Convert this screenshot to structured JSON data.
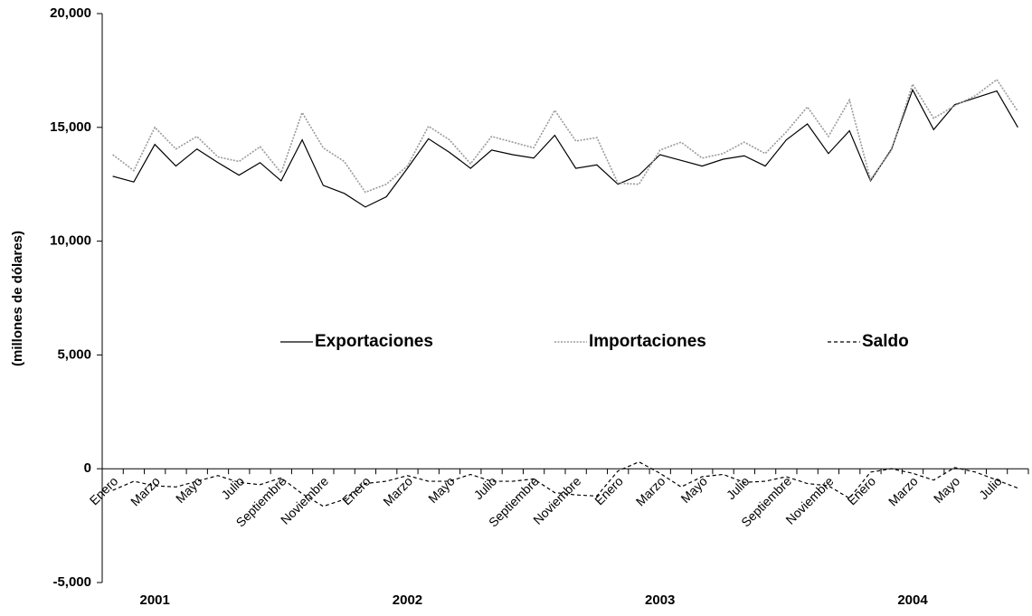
{
  "chart_data": {
    "type": "line",
    "y_label": "(millones de dólares)",
    "categories": [
      "Enero",
      null,
      "Marzo",
      null,
      "Mayo",
      null,
      "Julio",
      null,
      "Septiembre",
      null,
      "Noviembre",
      null,
      "Enero",
      null,
      "Marzo",
      null,
      "Mayo",
      null,
      "Julio",
      null,
      "Septiembre",
      null,
      "Noviembre",
      null,
      "Enero",
      null,
      "Marzo",
      null,
      "Mayo",
      null,
      "Julio",
      null,
      "Septiembre",
      null,
      "Noviembre",
      null,
      "Enero",
      null,
      "Marzo",
      null,
      "Mayo",
      null,
      "Julio",
      null
    ],
    "years": [
      "2001",
      "2002",
      "2003",
      "2004"
    ],
    "series": [
      {
        "name": "Exportaciones",
        "color": "#000000",
        "style": "solid",
        "values": [
          12850,
          12600,
          14250,
          13300,
          14050,
          13450,
          12900,
          13450,
          12650,
          14450,
          12450,
          12100,
          11500,
          11950,
          13200,
          14500,
          13900,
          13200,
          14000,
          13800,
          13650,
          14650,
          13200,
          13350,
          12500,
          12900,
          13800,
          13550,
          13300,
          13600,
          13750,
          13300,
          14450,
          15150,
          13850,
          14850,
          12650,
          14050,
          16650,
          14900,
          16000,
          16300,
          16600,
          15000
        ]
      },
      {
        "name": "Importaciones",
        "color": "#9a9a9a",
        "style": "dotted",
        "values": [
          13800,
          13100,
          15000,
          14050,
          14600,
          13700,
          13500,
          14150,
          13000,
          15650,
          14100,
          13500,
          12150,
          12500,
          13300,
          15050,
          14450,
          13400,
          14600,
          14350,
          14100,
          15750,
          14400,
          14550,
          12550,
          12500,
          14000,
          14350,
          13650,
          13850,
          14350,
          13850,
          14800,
          15900,
          14600,
          16200,
          12700,
          14000,
          16900,
          15400,
          15950,
          16400,
          17100,
          15700
        ]
      },
      {
        "name": "Saldo",
        "color": "#000000",
        "style": "dashed",
        "values": [
          -950,
          -550,
          -750,
          -800,
          -550,
          -300,
          -600,
          -700,
          -400,
          -1100,
          -1650,
          -1350,
          -650,
          -550,
          -300,
          -550,
          -550,
          -250,
          -550,
          -550,
          -450,
          -1050,
          -1150,
          -1200,
          -100,
          300,
          -200,
          -800,
          -350,
          -250,
          -600,
          -550,
          -350,
          -650,
          -750,
          -1300,
          -150,
          0,
          -200,
          -500,
          50,
          -150,
          -500,
          -850
        ]
      }
    ],
    "ylim": [
      -5000,
      20000
    ],
    "yticks": [
      {
        "value": -5000,
        "label": "-5,000"
      },
      0,
      {
        "value": 5000,
        "label": "5,000"
      },
      {
        "value": 10000,
        "label": "10,000"
      },
      {
        "value": 15000,
        "label": "15,000"
      },
      {
        "value": 20000,
        "label": "20,000"
      }
    ],
    "grid": false
  }
}
